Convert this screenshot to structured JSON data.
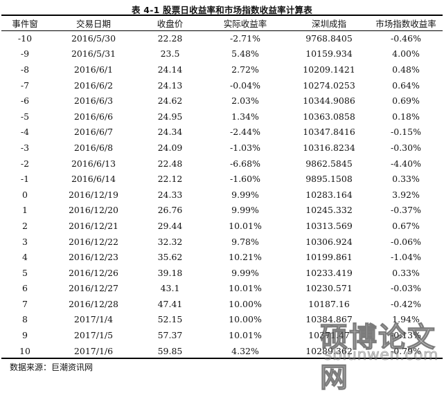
{
  "caption": "表 4-1  股票日收益率和市场指数收益率计算表",
  "table": {
    "headers": [
      "事件窗",
      "交易日期",
      "收盘价",
      "实际收益率",
      "深圳成指",
      "市场指数收益率"
    ],
    "rows": [
      [
        "-10",
        "2016/5/30",
        "22.28",
        "-2.71%",
        "9768.8405",
        "-0.46%"
      ],
      [
        "-9",
        "2016/5/31",
        "23.5",
        "5.48%",
        "10159.934",
        "4.00%"
      ],
      [
        "-8",
        "2016/6/1",
        "24.14",
        "2.72%",
        "10209.1421",
        "0.48%"
      ],
      [
        "-7",
        "2016/6/2",
        "24.13",
        "-0.04%",
        "10274.0253",
        "0.64%"
      ],
      [
        "-6",
        "2016/6/3",
        "24.62",
        "2.03%",
        "10344.9086",
        "0.69%"
      ],
      [
        "-5",
        "2016/6/6",
        "24.95",
        "1.34%",
        "10363.0858",
        "0.18%"
      ],
      [
        "-4",
        "2016/6/7",
        "24.34",
        "-2.44%",
        "10347.8416",
        "-0.15%"
      ],
      [
        "-3",
        "2016/6/8",
        "24.09",
        "-1.03%",
        "10316.8234",
        "-0.30%"
      ],
      [
        "-2",
        "2016/6/13",
        "22.48",
        "-6.68%",
        "9862.5845",
        "-4.40%"
      ],
      [
        "-1",
        "2016/6/14",
        "22.12",
        "-1.60%",
        "9895.1508",
        "0.33%"
      ],
      [
        "0",
        "2016/12/19",
        "24.33",
        "9.99%",
        "10283.164",
        "3.92%"
      ],
      [
        "1",
        "2016/12/20",
        "26.76",
        "9.99%",
        "10245.332",
        "-0.37%"
      ],
      [
        "2",
        "2016/12/21",
        "29.44",
        "10.01%",
        "10313.569",
        "0.67%"
      ],
      [
        "3",
        "2016/12/22",
        "32.32",
        "9.78%",
        "10306.924",
        "-0.06%"
      ],
      [
        "4",
        "2016/12/23",
        "35.62",
        "10.21%",
        "10199.861",
        "-1.04%"
      ],
      [
        "5",
        "2016/12/26",
        "39.18",
        "9.99%",
        "10233.419",
        "0.33%"
      ],
      [
        "6",
        "2016/12/27",
        "43.1",
        "10.01%",
        "10230.571",
        "-0.03%"
      ],
      [
        "7",
        "2016/12/28",
        "47.41",
        "10.00%",
        "10187.16",
        "-0.42%"
      ],
      [
        "8",
        "2017/1/4",
        "52.15",
        "10.00%",
        "10384.867",
        "1.94%"
      ],
      [
        "9",
        "2017/1/5",
        "57.37",
        "10.01%",
        "10371.47",
        "-0.13%"
      ],
      [
        "10",
        "2017/1/6",
        "59.85",
        "4.32%",
        "10289.362",
        "-0.79%"
      ]
    ]
  },
  "source_note": "数据来源：巨潮资讯网",
  "watermark": {
    "title": "硕博论文网",
    "url": "sbiunwen.com"
  }
}
